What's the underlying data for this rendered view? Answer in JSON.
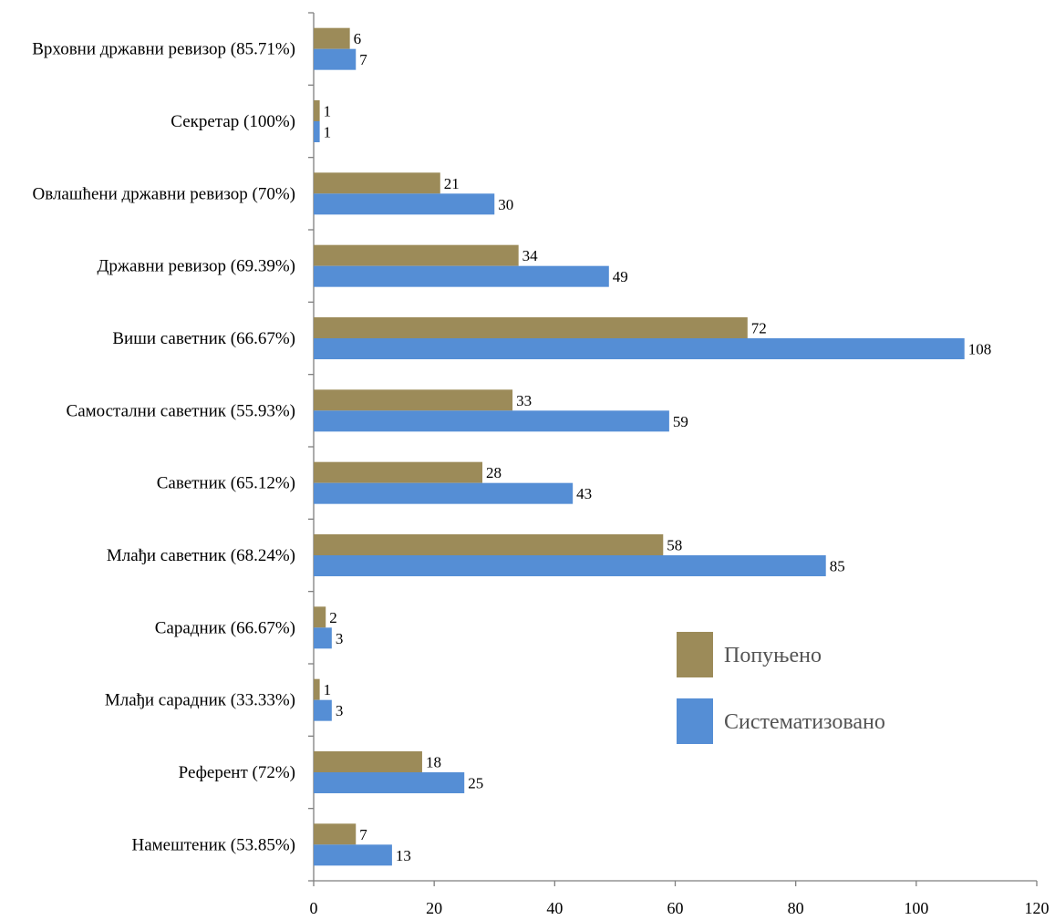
{
  "chart_data": {
    "type": "bar",
    "orientation": "horizontal",
    "categories": [
      "Врховни државни ревизор (85.71%)",
      "Секретар (100%)",
      "Овлашћени државни ревизор (70%)",
      "Државни ревизор (69.39%)",
      "Виши саветник (66.67%)",
      "Самостални саветник (55.93%)",
      "Саветник (65.12%)",
      "Млађи саветник (68.24%)",
      "Сарадник (66.67%)",
      "Млађи сарадник (33.33%)",
      "Референт (72%)",
      "Намештеник (53.85%)"
    ],
    "series": [
      {
        "name": "Попуњено",
        "color": "#9c8b59",
        "values": [
          6,
          1,
          21,
          34,
          72,
          33,
          28,
          58,
          2,
          1,
          18,
          7
        ]
      },
      {
        "name": "Систематизовано",
        "color": "#558ed5",
        "values": [
          7,
          1,
          30,
          49,
          108,
          59,
          43,
          85,
          3,
          3,
          25,
          13
        ]
      }
    ],
    "xlim": [
      0,
      120
    ],
    "xticks": [
      0,
      20,
      40,
      60,
      80,
      100,
      120
    ],
    "title": "",
    "xlabel": "",
    "ylabel": "",
    "grid": false,
    "legend_position": "right"
  }
}
